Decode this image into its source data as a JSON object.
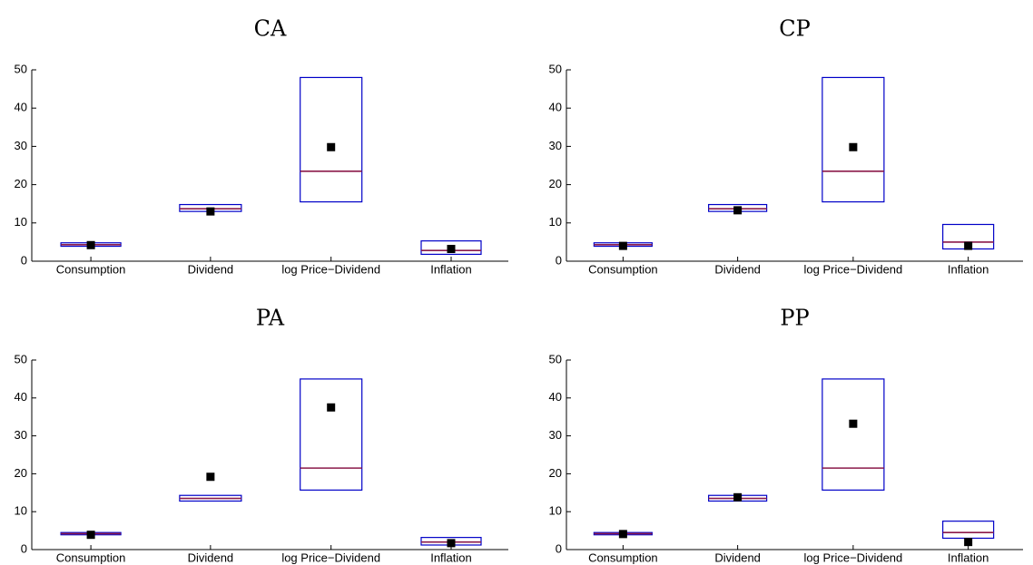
{
  "colors": {
    "box": "#0000c8",
    "median": "#8b1a4a",
    "point": "#000000",
    "axis": "#000000"
  },
  "chart_data": [
    {
      "type": "box",
      "title": "CA",
      "categories": [
        "Consumption",
        "Dividend",
        "log Price−Dividend",
        "Inflation"
      ],
      "ylim": [
        0,
        50
      ],
      "yticks": [
        0,
        10,
        20,
        30,
        40,
        50
      ],
      "boxes": [
        {
          "low": 3.9,
          "high": 4.8,
          "median": 4.3
        },
        {
          "low": 13.0,
          "high": 14.8,
          "median": 13.7
        },
        {
          "low": 15.5,
          "high": 48.0,
          "median": 23.5
        },
        {
          "low": 1.8,
          "high": 5.3,
          "median": 2.8
        }
      ],
      "points": [
        4.2,
        13.0,
        29.8,
        3.2
      ]
    },
    {
      "type": "box",
      "title": "CP",
      "categories": [
        "Consumption",
        "Dividend",
        "log Price−Dividend",
        "Inflation"
      ],
      "ylim": [
        0,
        50
      ],
      "yticks": [
        0,
        10,
        20,
        30,
        40,
        50
      ],
      "boxes": [
        {
          "low": 3.9,
          "high": 4.8,
          "median": 4.3
        },
        {
          "low": 13.0,
          "high": 14.8,
          "median": 13.7
        },
        {
          "low": 15.5,
          "high": 48.0,
          "median": 23.5
        },
        {
          "low": 3.2,
          "high": 9.6,
          "median": 5.0
        }
      ],
      "points": [
        4.0,
        13.3,
        29.8,
        4.0
      ]
    },
    {
      "type": "box",
      "title": "PA",
      "categories": [
        "Consumption",
        "Dividend",
        "log Price−Dividend",
        "Inflation"
      ],
      "ylim": [
        0,
        50
      ],
      "yticks": [
        0,
        10,
        20,
        30,
        40,
        50
      ],
      "boxes": [
        {
          "low": 3.9,
          "high": 4.5,
          "median": 4.2
        },
        {
          "low": 12.8,
          "high": 14.3,
          "median": 13.5
        },
        {
          "low": 15.7,
          "high": 45.0,
          "median": 21.5
        },
        {
          "low": 1.2,
          "high": 3.2,
          "median": 2.0
        }
      ],
      "points": [
        3.9,
        19.2,
        37.5,
        1.7
      ]
    },
    {
      "type": "box",
      "title": "PP",
      "categories": [
        "Consumption",
        "Dividend",
        "log Price−Dividend",
        "Inflation"
      ],
      "ylim": [
        0,
        50
      ],
      "yticks": [
        0,
        10,
        20,
        30,
        40,
        50
      ],
      "boxes": [
        {
          "low": 3.9,
          "high": 4.5,
          "median": 4.2
        },
        {
          "low": 12.8,
          "high": 14.3,
          "median": 13.5
        },
        {
          "low": 15.7,
          "high": 45.0,
          "median": 21.5
        },
        {
          "low": 3.0,
          "high": 7.5,
          "median": 4.5
        }
      ],
      "points": [
        4.1,
        13.8,
        33.2,
        2.0
      ]
    }
  ]
}
